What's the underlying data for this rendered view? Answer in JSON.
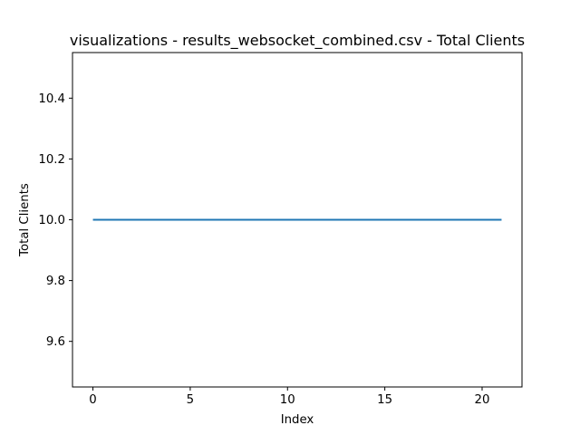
{
  "chart_data": {
    "type": "line",
    "title": "visualizations - results_websocket_combined.csv - Total Clients",
    "xlabel": "Index",
    "ylabel": "Total Clients",
    "xlim": [
      -1.05,
      22.05
    ],
    "ylim": [
      9.45,
      10.55
    ],
    "x_ticks": [
      0,
      5,
      10,
      15,
      20
    ],
    "y_ticks": [
      9.6,
      9.8,
      10.0,
      10.2,
      10.4
    ],
    "x_tick_labels": [
      "0",
      "5",
      "10",
      "15",
      "20"
    ],
    "y_tick_labels": [
      "9.6",
      "9.8",
      "10.0",
      "10.2",
      "10.4"
    ],
    "grid": false,
    "legend": "none",
    "series": [
      {
        "color": "#1f77b4",
        "x": [
          0,
          1,
          2,
          3,
          4,
          5,
          6,
          7,
          8,
          9,
          10,
          11,
          12,
          13,
          14,
          15,
          16,
          17,
          18,
          19,
          20,
          21
        ],
        "values": [
          10,
          10,
          10,
          10,
          10,
          10,
          10,
          10,
          10,
          10,
          10,
          10,
          10,
          10,
          10,
          10,
          10,
          10,
          10,
          10,
          10,
          10
        ]
      }
    ]
  }
}
